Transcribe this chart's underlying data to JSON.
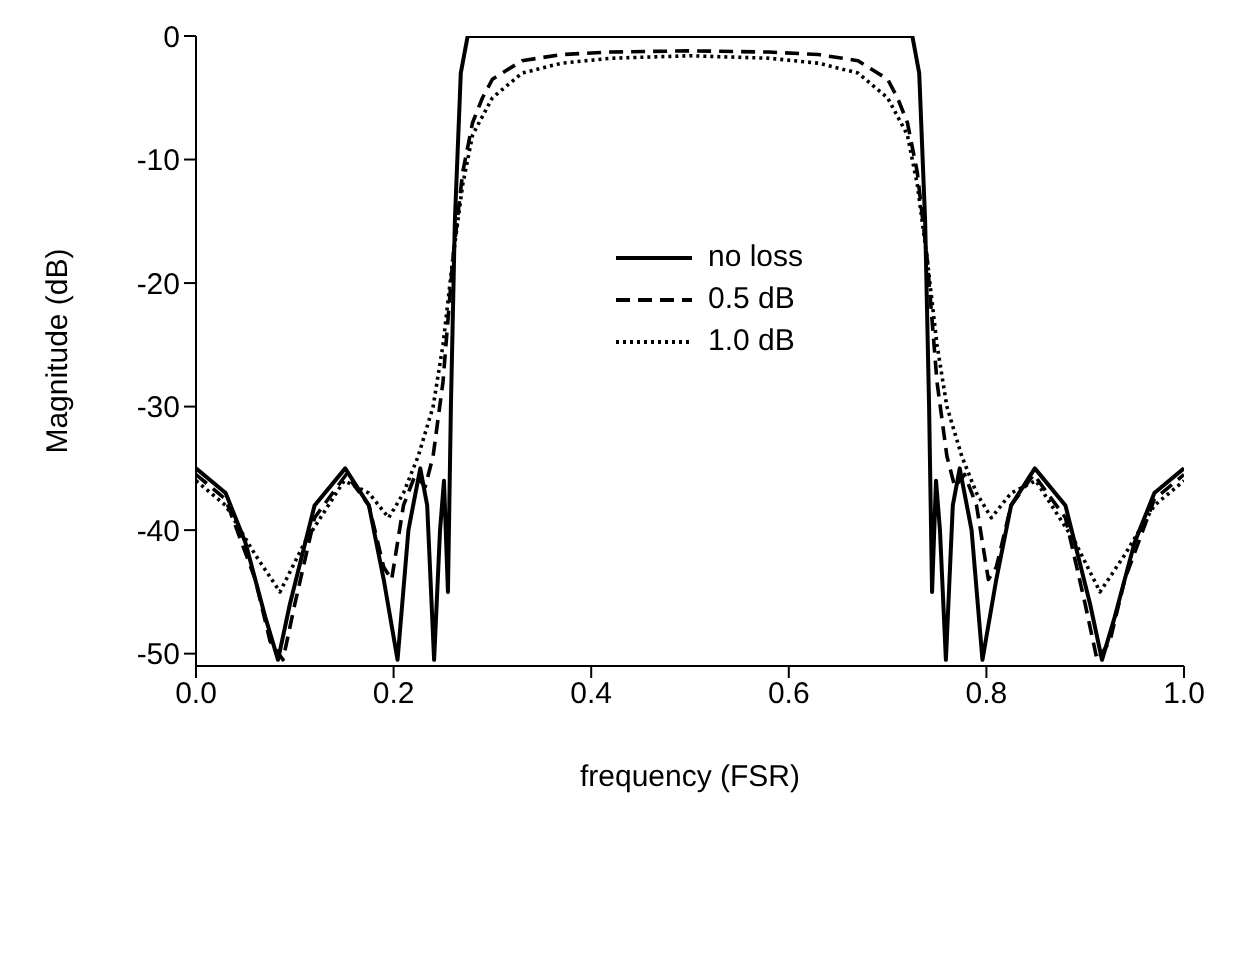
{
  "chart_data": {
    "type": "line",
    "xlabel": "frequency (FSR)",
    "ylabel": "Magnitude (dB)",
    "xlim": [
      0,
      1
    ],
    "xticks": [
      {
        "value": 0,
        "label": "0.0"
      },
      {
        "value": 0.2,
        "label": "0.2"
      },
      {
        "value": 0.4,
        "label": "0.4"
      },
      {
        "value": 0.6,
        "label": "0.6"
      },
      {
        "value": 0.8,
        "label": "0.8"
      },
      {
        "value": 1,
        "label": "1.0"
      }
    ],
    "ylim": [
      -51,
      0
    ],
    "yticks": [
      0,
      -10,
      -20,
      -30,
      -40,
      -50
    ],
    "grid": false,
    "legend": "top",
    "marker": "none",
    "series": [
      {
        "name": "no loss",
        "color": "#000000",
        "line_style": "solid",
        "x": [
          0,
          0.03,
          0.05,
          0.07,
          0.083,
          0.095,
          0.12,
          0.151,
          0.175,
          0.19,
          0.204,
          0.215,
          0.227,
          0.234,
          0.241,
          0.247,
          0.251,
          0.255,
          0.258,
          0.262,
          0.268,
          0.275,
          0.725,
          0.732,
          0.738,
          0.742,
          0.745,
          0.749,
          0.753,
          0.759,
          0.766,
          0.773,
          0.785,
          0.796,
          0.81,
          0.825,
          0.849,
          0.88,
          0.905,
          0.917,
          0.93,
          0.95,
          0.97,
          1
        ],
        "values": [
          -35,
          -37,
          -41,
          -47,
          -50.5,
          -46,
          -38,
          -35,
          -38,
          -44,
          -50.5,
          -40,
          -35,
          -38,
          -50.5,
          -40,
          -36,
          -45,
          -30,
          -15,
          -3,
          0,
          0,
          -3,
          -15,
          -30,
          -45,
          -36,
          -40,
          -50.5,
          -38,
          -35,
          -40,
          -50.5,
          -44,
          -38,
          -35,
          -38,
          -46,
          -50.5,
          -47,
          -41,
          -37,
          -35
        ]
      },
      {
        "name": "0.5 dB",
        "color": "#000000",
        "line_style": "dashed",
        "x": [
          0,
          0.03,
          0.06,
          0.075,
          0.088,
          0.1,
          0.12,
          0.152,
          0.175,
          0.19,
          0.198,
          0.21,
          0.222,
          0.232,
          0.24,
          0.25,
          0.26,
          0.27,
          0.28,
          0.29,
          0.3,
          0.33,
          0.37,
          0.42,
          0.5,
          0.58,
          0.63,
          0.67,
          0.7,
          0.71,
          0.72,
          0.73,
          0.74,
          0.75,
          0.76,
          0.768,
          0.778,
          0.79,
          0.802,
          0.81,
          0.825,
          0.848,
          0.88,
          0.9,
          0.912,
          0.925,
          0.94,
          0.97,
          1
        ],
        "values": [
          -35.5,
          -37.5,
          -44,
          -49,
          -50.5,
          -46,
          -39,
          -35.5,
          -38,
          -43,
          -44,
          -38,
          -35.5,
          -36.5,
          -34,
          -28,
          -18,
          -11,
          -7,
          -5,
          -3.5,
          -2,
          -1.5,
          -1.3,
          -1.2,
          -1.3,
          -1.5,
          -2,
          -3.5,
          -5,
          -7,
          -11,
          -18,
          -28,
          -34,
          -36.5,
          -35.5,
          -38,
          -44,
          -43,
          -38,
          -35.5,
          -39,
          -46,
          -50.5,
          -49,
          -44,
          -37.5,
          -35.5
        ]
      },
      {
        "name": "1.0 dB",
        "color": "#000000",
        "line_style": "dotted",
        "x": [
          0,
          0.03,
          0.06,
          0.085,
          0.11,
          0.15,
          0.175,
          0.195,
          0.21,
          0.225,
          0.24,
          0.25,
          0.26,
          0.27,
          0.28,
          0.3,
          0.33,
          0.37,
          0.42,
          0.5,
          0.58,
          0.63,
          0.67,
          0.7,
          0.72,
          0.73,
          0.74,
          0.75,
          0.76,
          0.775,
          0.79,
          0.805,
          0.825,
          0.85,
          0.89,
          0.915,
          0.94,
          0.97,
          1
        ],
        "values": [
          -36,
          -38,
          -42,
          -45,
          -41,
          -36,
          -37,
          -39,
          -37,
          -34,
          -30,
          -25,
          -18,
          -12,
          -8,
          -5,
          -3,
          -2.2,
          -1.8,
          -1.6,
          -1.8,
          -2.2,
          -3,
          -5,
          -8,
          -12,
          -18,
          -25,
          -30,
          -34,
          -37,
          -39,
          -37,
          -36,
          -41,
          -45,
          -42,
          -38,
          -36
        ]
      }
    ]
  }
}
